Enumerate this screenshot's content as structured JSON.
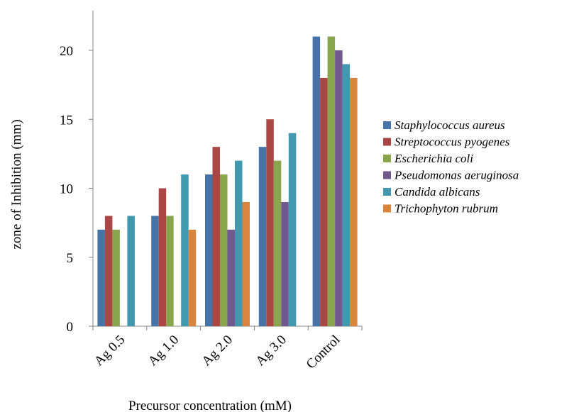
{
  "chart_data": {
    "type": "bar",
    "title": "",
    "xlabel": "Precursor concentration (mM)",
    "ylabel": "zone of Inhibition (mm)",
    "ylim": [
      0,
      22
    ],
    "yticks": [
      0,
      5,
      10,
      15,
      20
    ],
    "grid": false,
    "legend_position": "right",
    "categories": [
      "Ag 0.5",
      "Ag 1.0",
      "Ag 2.0",
      "Ag 3.0",
      "Control"
    ],
    "series": [
      {
        "name": "Staphylococcus aureus",
        "color": "#4572a7",
        "values": [
          7,
          8,
          11,
          13,
          21
        ]
      },
      {
        "name": "Streptococcus pyogenes",
        "color": "#aa4643",
        "values": [
          8,
          10,
          13,
          15,
          18
        ]
      },
      {
        "name": "Escherichia coli",
        "color": "#89a54e",
        "values": [
          7,
          8,
          11,
          12,
          21
        ]
      },
      {
        "name": "Pseudomonas aeruginosa",
        "color": "#71588f",
        "values": [
          0,
          0,
          7,
          9,
          20
        ]
      },
      {
        "name": "Candida albicans",
        "color": "#4198af",
        "values": [
          8,
          11,
          12,
          14,
          19
        ]
      },
      {
        "name": "Trichophyton rubrum",
        "color": "#db843d",
        "values": [
          0,
          7,
          9,
          0,
          18
        ]
      }
    ]
  }
}
